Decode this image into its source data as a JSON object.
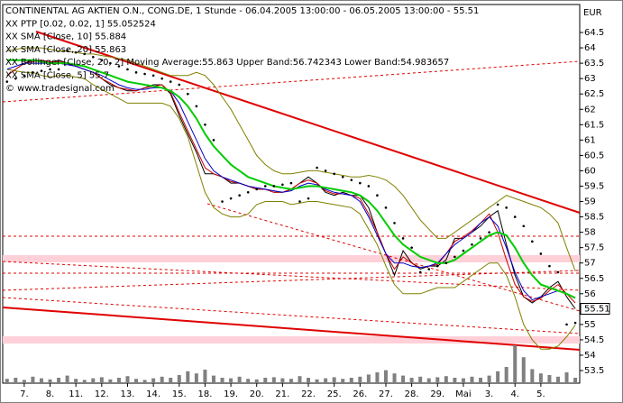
{
  "chart_data": {
    "type": "line",
    "y_unit": "EUR",
    "source": "© www.tradesignal.com",
    "categories": [
      null,
      null,
      "7.",
      null,
      null,
      "8.",
      null,
      null,
      "11.",
      null,
      null,
      "12.",
      null,
      null,
      "13.",
      null,
      null,
      "14.",
      null,
      null,
      "15.",
      null,
      null,
      "18.",
      null,
      null,
      "19.",
      null,
      null,
      "20.",
      null,
      null,
      "21.",
      null,
      null,
      "22.",
      null,
      null,
      "25.",
      null,
      null,
      "26.",
      null,
      null,
      "27.",
      null,
      null,
      "28.",
      null,
      null,
      "29.",
      null,
      null,
      "Mai",
      null,
      null,
      "3.",
      null,
      null,
      "4.",
      null,
      null,
      "5.",
      null,
      null,
      null,
      null
    ],
    "ylim": [
      53.09,
      65.41
    ],
    "yticks": [
      53.5,
      54,
      54.5,
      55,
      55.5,
      56,
      56.5,
      57,
      57.5,
      58,
      58.5,
      59,
      59.5,
      60,
      60.5,
      61,
      61.5,
      62,
      62.5,
      63,
      63.5,
      64,
      64.5
    ],
    "series": [
      {
        "name": "CONTINENTAL AG AKTIEN O.N., CONG.DE, 1 Stunde - 06.04.2005 13:00:00 - 06.05.2005 13:00:00 - 55.51",
        "color": "#000000",
        "style": "line",
        "values": [
          63.1,
          63.3,
          63.5,
          63.6,
          63.6,
          63.5,
          63.6,
          63.5,
          63.4,
          63.3,
          63.2,
          63.0,
          62.8,
          62.7,
          62.6,
          62.6,
          62.7,
          62.8,
          62.8,
          62.5,
          61.8,
          61.2,
          60.6,
          59.9,
          59.9,
          59.8,
          59.6,
          59.6,
          59.5,
          59.4,
          59.4,
          59.3,
          59.3,
          59.4,
          59.6,
          59.8,
          59.6,
          59.3,
          59.2,
          59.3,
          59.2,
          59.2,
          58.8,
          58.0,
          57.3,
          56.6,
          57.4,
          57.0,
          56.8,
          56.9,
          56.9,
          57.1,
          57.8,
          57.8,
          58.0,
          58.2,
          58.5,
          58.7,
          57.6,
          56.6,
          55.9,
          55.7,
          55.9,
          56.2,
          56.4,
          55.9,
          55.51
        ]
      },
      {
        "name": "XX PTP [0.02, 0.02, 1] 55.052524",
        "color": "#000000",
        "style": "dots",
        "values": [
          62.9,
          63.0,
          63.1,
          63.2,
          63.25,
          63.3,
          63.3,
          63.9,
          63.85,
          63.8,
          63.7,
          63.6,
          63.5,
          63.4,
          63.3,
          63.2,
          63.15,
          63.1,
          63.0,
          62.9,
          62.8,
          62.5,
          62.1,
          61.5,
          61.0,
          59.0,
          59.1,
          59.2,
          59.3,
          59.4,
          59.5,
          59.5,
          59.55,
          59.6,
          59.0,
          59.1,
          60.1,
          60.0,
          59.9,
          59.8,
          59.7,
          59.6,
          59.5,
          59.2,
          58.8,
          58.3,
          57.8,
          57.5,
          56.7,
          56.8,
          56.9,
          57.0,
          57.2,
          57.4,
          57.6,
          57.8,
          58.0,
          58.9,
          58.8,
          58.5,
          58.2,
          57.7,
          57.3,
          56.9,
          56.7,
          55.0,
          55.05
        ]
      },
      {
        "name": "XX SMA [Close, 10] 55.884",
        "color": "#0000cc",
        "style": "line",
        "values": [
          63.3,
          63.4,
          63.5,
          63.5,
          63.5,
          63.5,
          63.5,
          63.45,
          63.4,
          63.3,
          63.2,
          63.1,
          62.95,
          62.8,
          62.7,
          62.65,
          62.65,
          62.7,
          62.7,
          62.6,
          62.2,
          61.6,
          61.0,
          60.4,
          60.0,
          59.8,
          59.7,
          59.6,
          59.5,
          59.45,
          59.4,
          59.35,
          59.3,
          59.35,
          59.5,
          59.6,
          59.55,
          59.4,
          59.3,
          59.25,
          59.2,
          59.0,
          58.5,
          57.9,
          57.3,
          57.0,
          57.0,
          56.9,
          56.85,
          56.9,
          57.0,
          57.3,
          57.6,
          57.8,
          58.0,
          58.3,
          58.5,
          58.2,
          57.5,
          56.7,
          56.1,
          55.8,
          55.9,
          56.0,
          56.1,
          56.0,
          55.88
        ]
      },
      {
        "name": "XX SMA [Close, 20] 55.863",
        "color": "#00cc00",
        "style": "thick",
        "values": [
          63.6,
          63.6,
          63.6,
          63.6,
          63.55,
          63.5,
          63.5,
          63.5,
          63.45,
          63.4,
          63.3,
          63.2,
          63.1,
          63.0,
          62.9,
          62.85,
          62.8,
          62.75,
          62.7,
          62.6,
          62.4,
          62.1,
          61.7,
          61.2,
          60.8,
          60.5,
          60.2,
          60.0,
          59.8,
          59.7,
          59.6,
          59.5,
          59.45,
          59.4,
          59.45,
          59.5,
          59.5,
          59.45,
          59.4,
          59.35,
          59.3,
          59.2,
          59.0,
          58.7,
          58.3,
          57.9,
          57.6,
          57.4,
          57.2,
          57.1,
          57.0,
          57.0,
          57.1,
          57.3,
          57.5,
          57.7,
          57.9,
          58.0,
          57.9,
          57.5,
          57.0,
          56.6,
          56.3,
          56.2,
          56.1,
          56.0,
          55.86
        ]
      },
      {
        "name": "XX Bollinger [Close, 20, 2] Moving Average:55.863 Upper Band:56.742343 Lower Band:54.983657",
        "color": "#808000",
        "style": "band",
        "upper": [
          63.9,
          63.95,
          64.0,
          64.0,
          64.0,
          63.95,
          63.9,
          63.9,
          63.85,
          63.8,
          63.8,
          63.75,
          63.7,
          63.65,
          63.6,
          63.5,
          63.4,
          63.3,
          63.2,
          63.1,
          63.1,
          63.1,
          63.2,
          63.1,
          62.8,
          62.4,
          62.0,
          61.5,
          61.0,
          60.5,
          60.2,
          60.0,
          59.9,
          59.9,
          59.95,
          60.0,
          60.0,
          59.95,
          59.9,
          59.85,
          59.8,
          59.8,
          59.85,
          59.8,
          59.7,
          59.5,
          59.2,
          58.8,
          58.4,
          58.1,
          57.8,
          57.8,
          58.0,
          58.2,
          58.4,
          58.6,
          58.8,
          59.0,
          59.2,
          59.1,
          59.0,
          58.9,
          58.8,
          58.6,
          58.3,
          57.5,
          56.74
        ],
        "lower": [
          63.3,
          63.25,
          63.2,
          63.2,
          63.1,
          63.05,
          63.1,
          63.1,
          63.05,
          63.0,
          62.8,
          62.65,
          62.5,
          62.35,
          62.2,
          62.2,
          62.2,
          62.2,
          62.2,
          62.1,
          61.7,
          61.1,
          60.2,
          59.3,
          58.8,
          58.6,
          58.5,
          58.5,
          58.6,
          58.9,
          59.0,
          59.0,
          59.0,
          58.9,
          58.95,
          59.0,
          59.0,
          58.95,
          58.9,
          58.85,
          58.8,
          58.6,
          58.1,
          57.6,
          56.9,
          56.3,
          56.0,
          56.0,
          56.0,
          56.1,
          56.2,
          56.2,
          56.2,
          56.4,
          56.6,
          56.8,
          57.0,
          57.0,
          56.6,
          55.9,
          55.0,
          54.5,
          54.2,
          54.2,
          54.3,
          54.6,
          54.98
        ]
      },
      {
        "name": "XX SMA [Close, 5] 55.7",
        "color": "#cc0000",
        "style": "line",
        "values": [
          63.1,
          63.3,
          63.5,
          63.55,
          63.6,
          63.55,
          63.55,
          63.5,
          63.4,
          63.3,
          63.2,
          63.0,
          62.85,
          62.7,
          62.65,
          62.6,
          62.7,
          62.75,
          62.8,
          62.55,
          61.9,
          61.3,
          60.7,
          60.1,
          59.9,
          59.8,
          59.65,
          59.6,
          59.5,
          59.4,
          59.4,
          59.3,
          59.3,
          59.4,
          59.6,
          59.7,
          59.6,
          59.35,
          59.25,
          59.25,
          59.2,
          59.1,
          58.6,
          58.0,
          57.3,
          56.8,
          57.2,
          57.0,
          56.85,
          56.9,
          56.95,
          57.3,
          57.7,
          57.85,
          58.05,
          58.3,
          58.6,
          58.0,
          57.1,
          56.3,
          55.9,
          55.75,
          55.85,
          56.1,
          56.3,
          56.0,
          55.7
        ]
      }
    ],
    "volume": {
      "color": "#808080",
      "values": [
        8,
        10,
        6,
        12,
        9,
        7,
        10,
        14,
        8,
        6,
        9,
        11,
        7,
        10,
        13,
        8,
        6,
        9,
        12,
        10,
        15,
        22,
        18,
        25,
        14,
        10,
        9,
        12,
        8,
        7,
        10,
        11,
        9,
        8,
        13,
        10,
        7,
        9,
        11,
        8,
        10,
        12,
        16,
        20,
        24,
        18,
        14,
        10,
        12,
        9,
        11,
        13,
        10,
        9,
        12,
        10,
        14,
        22,
        30,
        70,
        48,
        26,
        18,
        15,
        12,
        20,
        10
      ]
    }
  }
}
